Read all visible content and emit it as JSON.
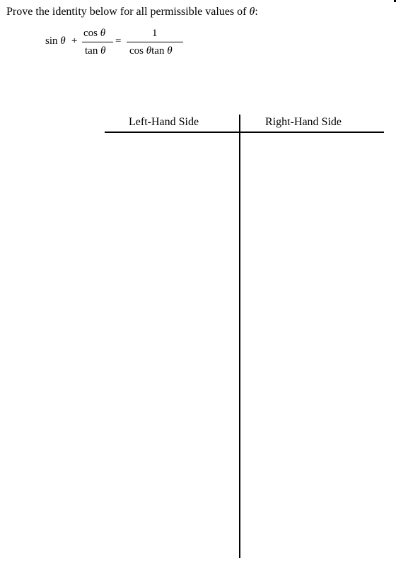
{
  "prompt": {
    "text": "Prove the identity below for all permissible values of",
    "symbol": "θ",
    "suffix": ":"
  },
  "identity": {
    "lhs_term": "sin",
    "lhs_var": "θ",
    "plus": "+",
    "frac1_num_fn": "cos",
    "frac1_num_var": "θ",
    "frac1_den_fn": "tan",
    "frac1_den_var": "θ",
    "equals": "=",
    "frac2_num": "1",
    "frac2_den_fn1": "cos",
    "frac2_den_var1": "θ",
    "frac2_den_fn2": "tan",
    "frac2_den_var2": "θ"
  },
  "table": {
    "left_header": "Left-Hand Side",
    "right_header": "Right-Hand Side"
  }
}
